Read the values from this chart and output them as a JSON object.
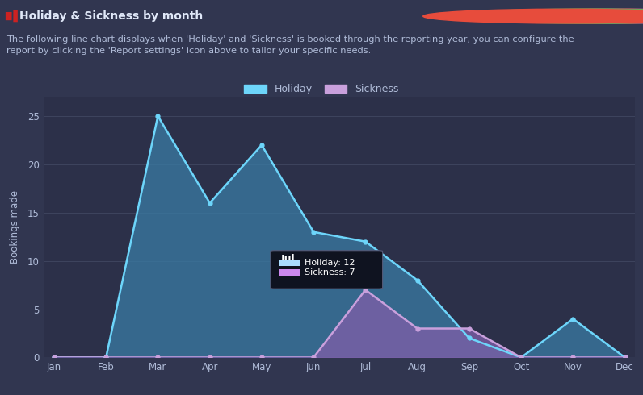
{
  "title": "Holiday & Sickness by month",
  "subtitle": "The following line chart displays when 'Holiday' and 'Sickness' is booked through the reporting year, you can configure the\nreport by clicking the 'Report settings' icon above to tailor your specific needs.",
  "months": [
    "Jan",
    "Feb",
    "Mar",
    "Apr",
    "May",
    "Jun",
    "Jul",
    "Aug",
    "Sep",
    "Oct",
    "Nov",
    "Dec"
  ],
  "holiday": [
    0,
    0,
    25,
    16,
    22,
    13,
    12,
    8,
    2,
    0,
    4,
    0
  ],
  "sickness": [
    0,
    0,
    0,
    0,
    0,
    0,
    7,
    3,
    3,
    0,
    0,
    0
  ],
  "holiday_line_color": "#6dd5fa",
  "holiday_fill_color": "#3a7ca5",
  "sickness_line_color": "#c9a0dc",
  "sickness_fill_color": "#7b5ea7",
  "bg_color": "#313650",
  "plot_bg_color": "#2c3049",
  "header_bg": "#3d4159",
  "text_color": "#b0bcd8",
  "title_color": "#e0e8f8",
  "grid_color": "#404660",
  "ylim": [
    0,
    27
  ],
  "yticks": [
    0,
    5,
    10,
    15,
    20,
    25
  ],
  "tooltip_month": "Jul",
  "tooltip_holiday": 12,
  "tooltip_sickness": 7,
  "ylabel": "Bookings made",
  "legend_holiday": "Holiday",
  "legend_sickness": "Sickness"
}
